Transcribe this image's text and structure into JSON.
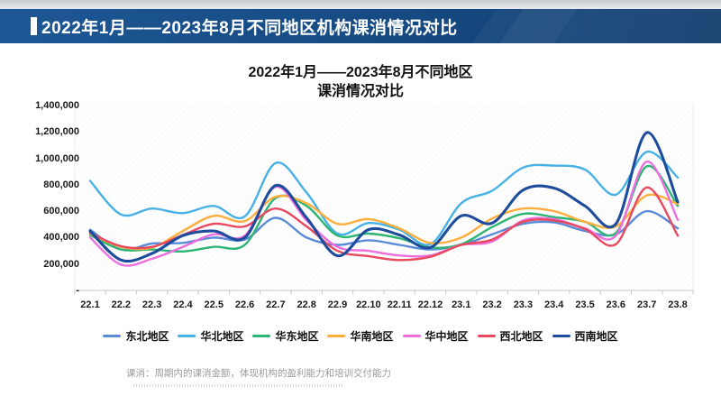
{
  "header": {
    "title": "2022年1月——2023年8月不同地区机构课消情况对比"
  },
  "chart": {
    "title_line1": "2022年1月——2023年8月不同地区",
    "title_line2": "课消情况对比"
  },
  "chart_data": {
    "type": "line",
    "title": "2022年1月——2023年8月不同地区课消情况对比",
    "xlabel": "",
    "ylabel": "",
    "ylim": [
      0,
      1400000
    ],
    "grid": false,
    "legend_position": "bottom",
    "smooth": true,
    "y_ticks": [
      "1,400,000",
      "1,200,000",
      "1,000,000",
      "800,000",
      "600,000",
      "400,000",
      "200,000",
      "-"
    ],
    "categories": [
      "22.1",
      "22.2",
      "22.3",
      "22.4",
      "22.5",
      "22.6",
      "22.7",
      "22.8",
      "22.9",
      "22.10",
      "22.11",
      "22.12",
      "23.1",
      "23.2",
      "23.3",
      "23.4",
      "23.5",
      "23.6",
      "23.7",
      "23.8"
    ],
    "series": [
      {
        "name": "东北地区",
        "color": "#5B8BD8",
        "values": [
          460000,
          310000,
          355000,
          360000,
          400000,
          385000,
          550000,
          400000,
          345000,
          380000,
          345000,
          310000,
          345000,
          425000,
          505000,
          515000,
          450000,
          425000,
          600000,
          470000
        ]
      },
      {
        "name": "华北地区",
        "color": "#47B1E6",
        "values": [
          830000,
          575000,
          620000,
          585000,
          640000,
          560000,
          965000,
          740000,
          430000,
          510000,
          460000,
          350000,
          660000,
          755000,
          930000,
          945000,
          915000,
          725000,
          1050000,
          855000
        ]
      },
      {
        "name": "华东地区",
        "color": "#2FB573",
        "values": [
          420000,
          310000,
          310000,
          295000,
          330000,
          345000,
          700000,
          640000,
          415000,
          430000,
          395000,
          325000,
          350000,
          480000,
          580000,
          555000,
          520000,
          435000,
          940000,
          640000
        ]
      },
      {
        "name": "华南地区",
        "color": "#FFAD3C",
        "values": [
          430000,
          330000,
          325000,
          450000,
          565000,
          525000,
          710000,
          660000,
          505000,
          540000,
          470000,
          360000,
          400000,
          545000,
          620000,
          600000,
          520000,
          485000,
          720000,
          655000
        ]
      },
      {
        "name": "华中地区",
        "color": "#EC6EDF",
        "values": [
          400000,
          195000,
          240000,
          330000,
          425000,
          415000,
          785000,
          530000,
          330000,
          300000,
          265000,
          265000,
          345000,
          370000,
          530000,
          540000,
          470000,
          415000,
          975000,
          535000
        ]
      },
      {
        "name": "西北地区",
        "color": "#E8495F",
        "values": [
          435000,
          335000,
          330000,
          420000,
          505000,
          485000,
          620000,
          485000,
          300000,
          260000,
          230000,
          255000,
          345000,
          385000,
          520000,
          530000,
          465000,
          350000,
          780000,
          415000
        ]
      },
      {
        "name": "西南地区",
        "color": "#1E4C9D",
        "values": [
          450000,
          230000,
          280000,
          415000,
          450000,
          400000,
          795000,
          550000,
          262000,
          460000,
          420000,
          325000,
          565000,
          510000,
          760000,
          775000,
          640000,
          505000,
          1195000,
          670000
        ]
      }
    ]
  },
  "footnote": "课消：周期内的课消金额，体现机构的盈利能力和培训交付能力"
}
